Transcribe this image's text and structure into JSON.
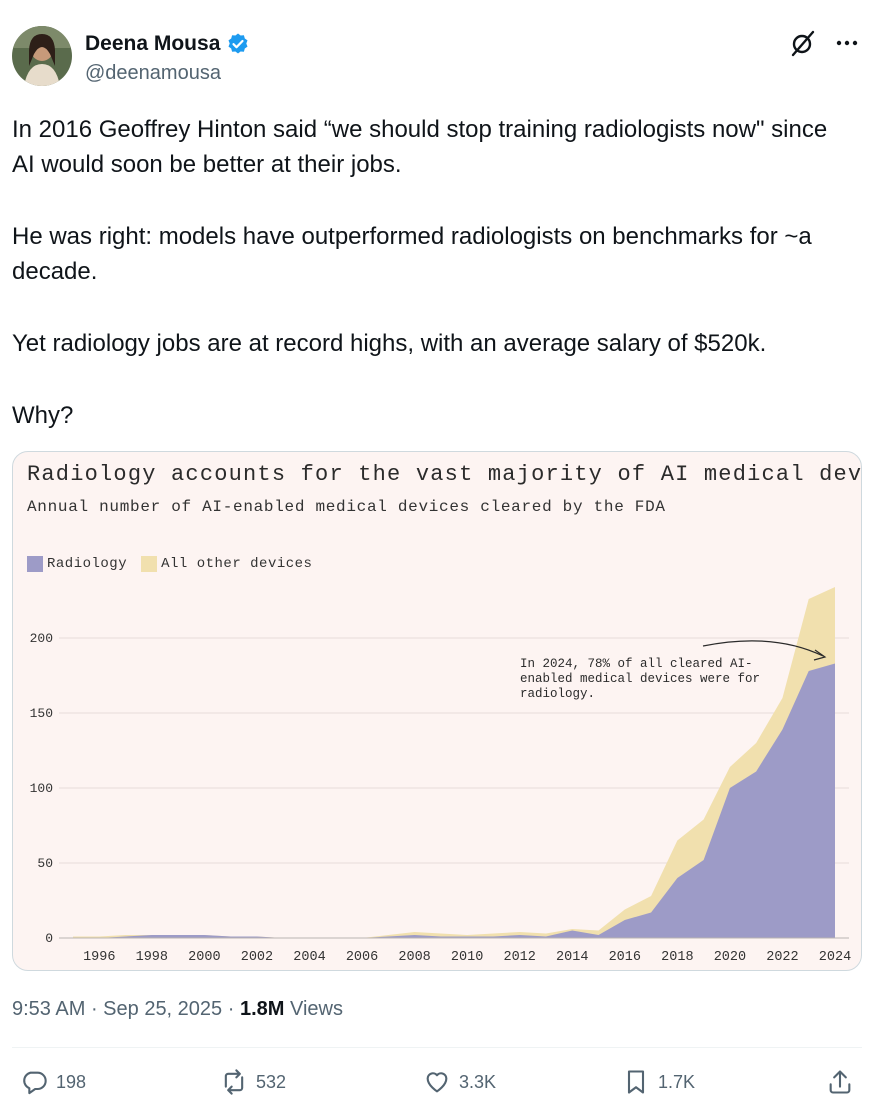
{
  "author": {
    "name": "Deena Mousa",
    "handle": "@deenamousa"
  },
  "tweet": {
    "paragraphs": [
      "In 2016 Geoffrey Hinton said “we should stop training radiologists now\" since AI would soon be better at their jobs.",
      "He was right: models have outperformed radiologists on benchmarks for ~a decade.",
      "Yet radiology jobs are at record highs, with an average salary of $520k.",
      "Why?"
    ]
  },
  "meta": {
    "time": "9:53 AM",
    "sep1": " · ",
    "date": "Sep 25, 2025",
    "sep2": " · ",
    "views_count": "1.8M",
    "views_label": " Views"
  },
  "actions": {
    "replies": "198",
    "reposts": "532",
    "likes": "3.3K",
    "bookmarks": "1.7K"
  },
  "colors": {
    "radiology": "#9d9bc7",
    "other": "#f1e0ae",
    "chart_bg": "#fdf4f2",
    "verified": "#1d9bf0"
  },
  "chart_data": {
    "type": "area",
    "title": "Radiology accounts for the vast majority of AI medical devices",
    "subtitle": "Annual number of AI-enabled medical devices cleared by the FDA",
    "legend": [
      "Radiology",
      "All other devices"
    ],
    "x": [
      1995,
      1996,
      1997,
      1998,
      1999,
      2000,
      2001,
      2002,
      2003,
      2004,
      2005,
      2006,
      2007,
      2008,
      2009,
      2010,
      2011,
      2012,
      2013,
      2014,
      2015,
      2016,
      2017,
      2018,
      2019,
      2020,
      2021,
      2022,
      2023,
      2024
    ],
    "series": [
      {
        "name": "Radiology",
        "values": [
          0,
          0,
          1,
          2,
          2,
          2,
          1,
          1,
          0,
          0,
          0,
          0,
          1,
          2,
          1,
          1,
          1,
          2,
          1,
          5,
          2,
          12,
          17,
          40,
          52,
          100,
          111,
          139,
          178,
          183
        ]
      },
      {
        "name": "All other devices",
        "values": [
          1,
          1,
          1,
          0,
          0,
          0,
          0,
          0,
          0,
          0,
          0,
          0,
          1,
          2,
          2,
          1,
          2,
          2,
          2,
          1,
          3,
          7,
          11,
          25,
          27,
          14,
          19,
          21,
          48,
          51
        ]
      }
    ],
    "xticks": [
      "1996",
      "1998",
      "2000",
      "2002",
      "2004",
      "2006",
      "2008",
      "2010",
      "2012",
      "2014",
      "2016",
      "2018",
      "2020",
      "2022",
      "2024"
    ],
    "yticks": [
      "0",
      "50",
      "100",
      "150",
      "200"
    ],
    "ylim": [
      0,
      240
    ],
    "annotation": [
      "In 2024, 78% of all cleared AI-",
      "enabled medical devices were for",
      "radiology."
    ]
  }
}
